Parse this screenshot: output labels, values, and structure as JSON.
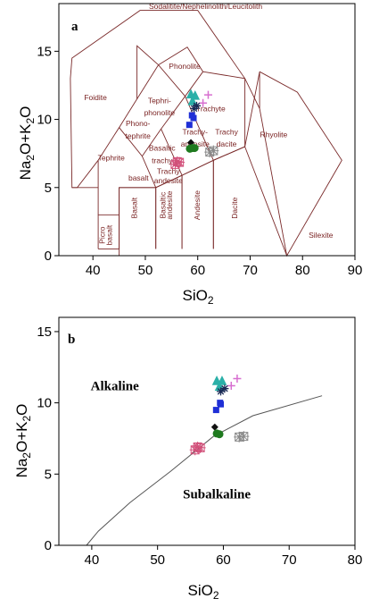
{
  "chart_data": [
    {
      "type": "scatter",
      "panel": "a",
      "xlabel": "SiO2",
      "ylabel": "Na2O+K2O",
      "xlim": [
        33.5,
        90
      ],
      "ylim": [
        0,
        18.5
      ],
      "xticks": [
        "40",
        "50",
        "60",
        "70",
        "80",
        "90"
      ],
      "yticks": [
        "0",
        "5",
        "10",
        "15"
      ],
      "field_labels": [
        {
          "text": "Sodalitite/Nephelinolith/Leucitolith",
          "x": 61.5,
          "y": 18.1
        },
        {
          "text": "Phonolite",
          "x": 57.5,
          "y": 13.7
        },
        {
          "text": "Foidite",
          "x": 40.5,
          "y": 11.4
        },
        {
          "text": "Tephri-",
          "x": 52.7,
          "y": 11.2
        },
        {
          "text": "phonolite",
          "x": 52.7,
          "y": 10.3
        },
        {
          "text": "Trachyte",
          "x": 62.5,
          "y": 10.6
        },
        {
          "text": "Phono-",
          "x": 48.6,
          "y": 9.5
        },
        {
          "text": "tephrite",
          "x": 48.6,
          "y": 8.6
        },
        {
          "text": "Trachy-",
          "x": 59.5,
          "y": 8.9
        },
        {
          "text": "andesite",
          "x": 59.5,
          "y": 8.0
        },
        {
          "text": "Trachy",
          "x": 65.5,
          "y": 8.9
        },
        {
          "text": "dacite",
          "x": 65.5,
          "y": 8.0
        },
        {
          "text": "Rhyolite",
          "x": 74.5,
          "y": 8.7
        },
        {
          "text": "Basaltic",
          "x": 53.2,
          "y": 7.7
        },
        {
          "text": "trachy",
          "x": 53.2,
          "y": 6.8
        },
        {
          "text": "Trachy",
          "x": 54.4,
          "y": 6.0
        },
        {
          "text": "andesite",
          "x": 54.4,
          "y": 5.3
        },
        {
          "text": "Tephrite",
          "x": 43.5,
          "y": 7.0
        },
        {
          "text": "basalt",
          "x": 48.7,
          "y": 5.5
        },
        {
          "text": "Silexite",
          "x": 83.5,
          "y": 1.3
        }
      ],
      "vertical_labels": [
        {
          "text": "Picro",
          "x": 42.3,
          "y": 1.5
        },
        {
          "text": "basalt",
          "x": 43.6,
          "y": 1.5
        },
        {
          "text": "Basalt",
          "x": 48.4,
          "y": 3.5
        },
        {
          "text": "Basaltic",
          "x": 53.8,
          "y": 3.7
        },
        {
          "text": "andesite",
          "x": 55.1,
          "y": 3.7
        },
        {
          "text": "Andesite",
          "x": 60.4,
          "y": 3.7
        },
        {
          "text": "Dacite",
          "x": 67.5,
          "y": 3.5
        }
      ],
      "series": [
        {
          "marker": "triangle",
          "color": "#2bb0a8",
          "points": [
            [
              58.7,
              11.8
            ],
            [
              59.0,
              11.3
            ],
            [
              59.5,
              11.7
            ]
          ]
        },
        {
          "marker": "plus",
          "color": "#d76fd0",
          "points": [
            [
              62.0,
              11.8
            ],
            [
              61.0,
              11.2
            ]
          ]
        },
        {
          "marker": "asterisk",
          "color": "#1a2a55",
          "points": [
            [
              59.3,
              10.8
            ],
            [
              59.8,
              11.0
            ]
          ]
        },
        {
          "marker": "square",
          "color": "#1f2fd6",
          "points": [
            [
              58.9,
              10.3
            ],
            [
              58.4,
              9.6
            ],
            [
              59.2,
              10.1
            ]
          ]
        },
        {
          "marker": "diamond",
          "color": "#111111",
          "points": [
            [
              58.7,
              8.3
            ]
          ]
        },
        {
          "marker": "circle",
          "color": "#1f7a1f",
          "points": [
            [
              59.0,
              7.9
            ],
            [
              59.4,
              7.9
            ],
            [
              58.5,
              7.85
            ]
          ]
        },
        {
          "marker": "starsquare",
          "color": "#d2507a",
          "points": [
            [
              55.7,
              6.7
            ],
            [
              56.1,
              6.9
            ],
            [
              56.5,
              6.85
            ]
          ]
        },
        {
          "marker": "starsquare",
          "color": "#8a8a8a",
          "points": [
            [
              62.3,
              7.6
            ],
            [
              63.0,
              7.7
            ]
          ]
        }
      ]
    },
    {
      "type": "scatter",
      "panel": "b",
      "xlabel": "SiO2",
      "ylabel": "Na2O+K2O",
      "xlim": [
        35,
        80
      ],
      "ylim": [
        0,
        16
      ],
      "xticks": [
        "40",
        "50",
        "60",
        "70",
        "80"
      ],
      "yticks": [
        "0",
        "5",
        "10",
        "15"
      ],
      "region_labels": [
        {
          "text": "Alkaline",
          "x": 43.5,
          "y": 10.9
        },
        {
          "text": "Subalkaline",
          "x": 59.0,
          "y": 3.3
        }
      ],
      "boundary": [
        [
          39.2,
          0
        ],
        [
          41,
          1.0
        ],
        [
          45.8,
          3.0
        ],
        [
          52,
          5.2
        ],
        [
          58.5,
          7.65
        ],
        [
          64.5,
          9.1
        ],
        [
          75,
          10.5
        ]
      ],
      "series": [
        {
          "marker": "triangle",
          "color": "#2bb0a8",
          "points": [
            [
              59.0,
              11.5
            ],
            [
              59.4,
              11.1
            ],
            [
              59.8,
              11.5
            ]
          ]
        },
        {
          "marker": "plus",
          "color": "#d76fd0",
          "points": [
            [
              62.1,
              11.7
            ],
            [
              61.2,
              11.2
            ]
          ]
        },
        {
          "marker": "asterisk",
          "color": "#1a2a55",
          "points": [
            [
              59.6,
              10.8
            ],
            [
              60.2,
              11.0
            ]
          ]
        },
        {
          "marker": "square",
          "color": "#1f2fd6",
          "points": [
            [
              59.5,
              10.0
            ],
            [
              58.9,
              9.5
            ],
            [
              59.6,
              9.9
            ]
          ]
        },
        {
          "marker": "diamond",
          "color": "#111111",
          "points": [
            [
              58.7,
              8.3
            ]
          ]
        },
        {
          "marker": "circle",
          "color": "#1f7a1f",
          "points": [
            [
              59.0,
              7.85
            ],
            [
              59.4,
              7.8
            ]
          ]
        },
        {
          "marker": "starsquare",
          "color": "#d2507a",
          "points": [
            [
              55.7,
              6.7
            ],
            [
              56.1,
              6.9
            ],
            [
              56.5,
              6.85
            ]
          ]
        },
        {
          "marker": "starsquare",
          "color": "#8a8a8a",
          "points": [
            [
              62.4,
              7.6
            ],
            [
              63.1,
              7.65
            ]
          ]
        }
      ]
    }
  ]
}
